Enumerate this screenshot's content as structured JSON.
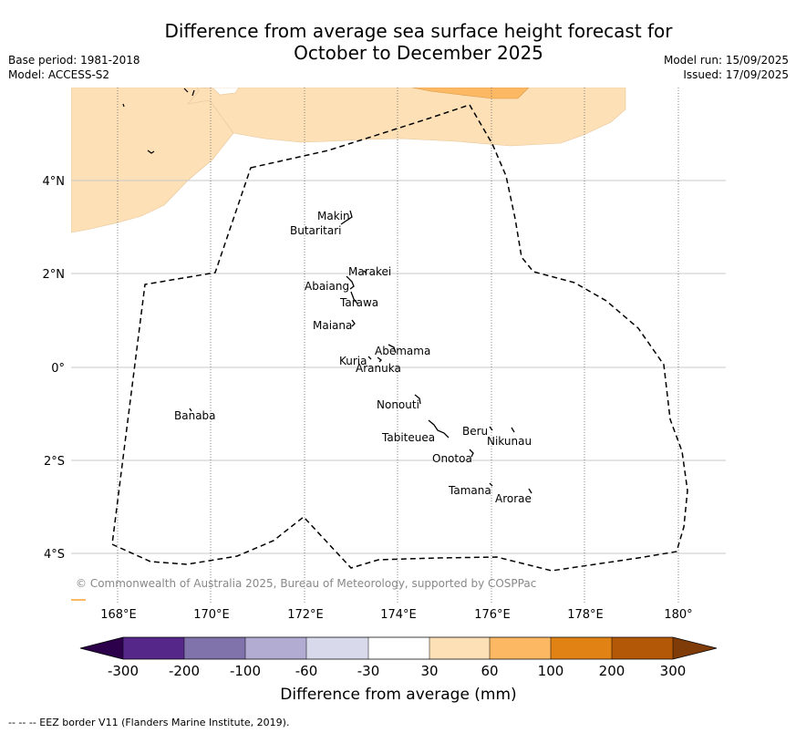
{
  "title": {
    "line1": "Difference from average sea surface height forecast for",
    "line2": "October to December 2025"
  },
  "meta": {
    "base_period": "Base period: 1981-2018",
    "model": "Model: ACCESS-S2",
    "model_run": "Model run: 15/09/2025",
    "issued": "Issued: 17/09/2025"
  },
  "map": {
    "copyright": "© Commonwealth of Australia 2025, Bureau of Meteorology, supported by COSPPac",
    "lon_ticks": [
      "168°E",
      "170°E",
      "172°E",
      "174°E",
      "176°E",
      "178°E",
      "180°"
    ],
    "lat_ticks": [
      "4°N",
      "2°N",
      "0°",
      "2°S",
      "4°S"
    ],
    "islands": [
      "Makin",
      "Butaritari",
      "Marakei",
      "Abaiang",
      "Tarawa",
      "Maiana",
      "Abemama",
      "Kuria",
      "Aranuka",
      "Banaba",
      "Nonouti",
      "Beru",
      "Nikunau",
      "Tabiteuea",
      "Onotoa",
      "Tamana",
      "Arorae"
    ],
    "colors": {
      "band_30_60": "#fde0b6",
      "band_60_100": "#fdb863",
      "border": "#000000"
    }
  },
  "legend": {
    "tick_labels": [
      "-300",
      "-200",
      "-100",
      "-60",
      "-30",
      "30",
      "60",
      "100",
      "200",
      "300"
    ],
    "label": "Difference from average (mm)",
    "colors": [
      "#2d004b",
      "#542788",
      "#8073ac",
      "#b2abd2",
      "#d8daeb",
      "#ffffff",
      "#fee0b6",
      "#fdb863",
      "#e08214",
      "#b35806",
      "#7f3b08"
    ]
  },
  "footer": "-- -- -- EEZ border V11 (Flanders Marine Institute, 2019)."
}
